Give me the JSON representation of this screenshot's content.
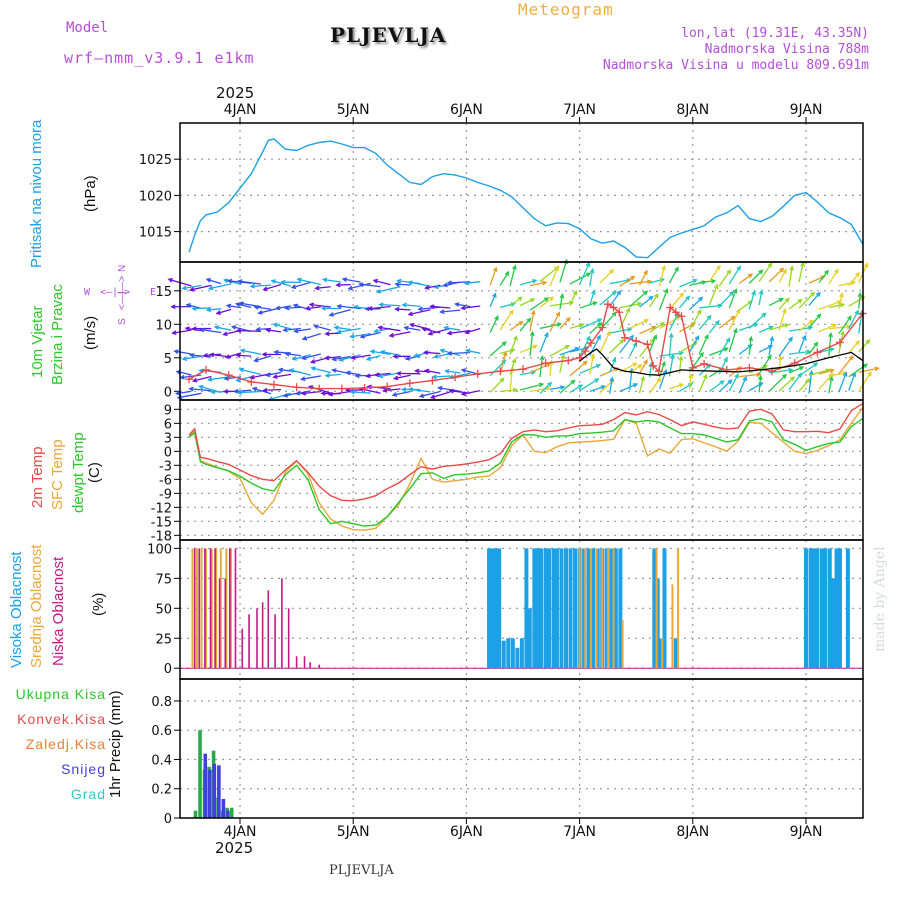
{
  "header": {
    "model_label": "Model",
    "model_name": "wrf—nmm_v3.9.1 e1km",
    "app_title": "Meteogram",
    "station": "PLJEVLJA",
    "coords": "lon,lat (19.31E, 43.35N)",
    "altitude": "Nadmorska Visina 788m",
    "model_altitude": "Nadmorska Visina u modelu 809.691m",
    "year_top": "2025",
    "year_bottom": "2025",
    "footer_station": "PLJEVLJA",
    "credit": "made by Angel"
  },
  "axis": {
    "days": [
      "4JAN",
      "5JAN",
      "6JAN",
      "7JAN",
      "8JAN",
      "9JAN"
    ]
  },
  "panels": {
    "pressure": {
      "label": "Pritisak na nivou mora",
      "unit": "(hPa)",
      "ticks": [
        "1025",
        "1020",
        "1015"
      ]
    },
    "wind": {
      "label1": "10m Vjetar",
      "label2": "Brzina i Pravac",
      "unit": "(m/s)",
      "ticks": [
        "15",
        "10",
        "5",
        "0"
      ],
      "compass_n": "N",
      "compass_s": "S",
      "compass_w": "W",
      "compass_e": "E",
      "compass_h": "<—|—>"
    },
    "temp": {
      "label1": "2m Temp",
      "label2": "SFC Temp",
      "label3": "dewpt Temp",
      "unit": "(C)",
      "ticks": [
        "9",
        "6",
        "3",
        "0",
        "-3",
        "-6",
        "-9",
        "-12",
        "-15",
        "-18"
      ]
    },
    "cloud": {
      "label1": "Visoka Oblacnost",
      "label2": "Srednja Oblacnost",
      "label3": "Niska Oblacnost",
      "unit": "(%)",
      "ticks": [
        "100",
        "75",
        "50",
        "25",
        "0"
      ]
    },
    "precip": {
      "unit": "1hr Precip (mm)",
      "ticks": [
        "0.8",
        "0.6",
        "0.4",
        "0.2",
        "0"
      ],
      "legend": [
        "Ukupna Kisa",
        "Konvek.Kisa",
        "Zaledj.Kisa",
        "Snijeg",
        "Grad"
      ]
    }
  },
  "colors": {
    "pressure": "#1ea0e6",
    "temp2m": "#e84a4a",
    "sfc": "#e8a83a",
    "dewpt": "#2ac82a",
    "cloud_high": "#1ea0e6",
    "cloud_mid": "#e8a83a",
    "cloud_low": "#c4178a",
    "precip_total": "#2aa84a",
    "precip_conv": "#e84a4a",
    "precip_frz": "#f08030",
    "precip_snow": "#4040e0",
    "precip_hail": "#30c8c8",
    "title_purple": "#b44fd8",
    "title_orange": "#f0b040"
  },
  "chart_data": [
    {
      "type": "line",
      "title": "Pritisak na nivou mora",
      "ylabel": "(hPa)",
      "x_day_range": [
        3.55,
        9.5
      ],
      "ylim": [
        1010.8,
        1030
      ],
      "x": [
        3.55,
        3.6,
        3.65,
        3.7,
        3.8,
        3.9,
        4.0,
        4.1,
        4.2,
        4.25,
        4.3,
        4.4,
        4.5,
        4.6,
        4.7,
        4.8,
        4.9,
        5.0,
        5.1,
        5.2,
        5.3,
        5.4,
        5.5,
        5.6,
        5.7,
        5.8,
        5.9,
        6.0,
        6.1,
        6.2,
        6.3,
        6.4,
        6.5,
        6.6,
        6.7,
        6.8,
        6.9,
        7.0,
        7.1,
        7.2,
        7.3,
        7.4,
        7.5,
        7.6,
        7.7,
        7.8,
        7.9,
        8.0,
        8.1,
        8.2,
        8.3,
        8.4,
        8.5,
        8.6,
        8.7,
        8.8,
        8.9,
        9.0,
        9.1,
        9.2,
        9.3,
        9.4,
        9.5
      ],
      "y": [
        1012.2,
        1014.5,
        1016.5,
        1017.3,
        1017.7,
        1019.0,
        1021.0,
        1023.0,
        1026.0,
        1027.6,
        1027.8,
        1026.4,
        1026.2,
        1026.9,
        1027.3,
        1027.5,
        1027.1,
        1026.6,
        1026.6,
        1025.8,
        1024.2,
        1023.0,
        1021.8,
        1021.5,
        1022.6,
        1023.0,
        1022.8,
        1022.4,
        1021.8,
        1021.3,
        1020.7,
        1019.8,
        1018.3,
        1016.8,
        1015.8,
        1016.2,
        1016.1,
        1015.4,
        1014.0,
        1013.4,
        1013.7,
        1012.8,
        1011.5,
        1011.4,
        1012.8,
        1014.2,
        1014.8,
        1015.3,
        1015.8,
        1017.0,
        1017.6,
        1018.6,
        1016.8,
        1016.4,
        1017.1,
        1018.5,
        1020.0,
        1020.4,
        1019.1,
        1017.6,
        1016.9,
        1016.0,
        1013.3
      ]
    },
    {
      "type": "line",
      "title": "10m Vjetar Brzina i Pravac",
      "ylabel": "(m/s)",
      "ylim": [
        -1.3,
        19.3
      ],
      "series": [
        {
          "x": [
            3.55,
            3.7,
            3.9,
            4.1,
            4.3,
            4.5,
            4.7,
            4.9,
            5.1,
            5.3,
            5.5,
            5.7,
            5.9,
            6.1,
            6.3,
            6.5,
            6.7,
            6.9,
            7.0,
            7.05,
            7.1,
            7.2,
            7.25,
            7.3,
            7.35,
            7.4,
            7.5,
            7.6,
            7.65,
            7.7,
            7.8,
            7.85,
            7.9,
            8.0,
            8.1,
            8.3,
            8.5,
            8.7,
            8.9,
            9.1,
            9.3,
            9.5
          ],
          "y": [
            1.8,
            3.2,
            2.4,
            1.4,
            1.0,
            0.6,
            0.4,
            0.4,
            0.5,
            0.7,
            1.2,
            1.6,
            2.1,
            2.6,
            3.0,
            3.3,
            4.2,
            4.6,
            5.0,
            6.0,
            7.2,
            9.5,
            13.0,
            12.5,
            11.8,
            8.0,
            7.5,
            7.0,
            3.8,
            3.0,
            12.5,
            11.8,
            11.2,
            3.5,
            4.1,
            3.2,
            3.5,
            3.0,
            4.2,
            5.8,
            7.3,
            11.6
          ]
        },
        {
          "x": [
            7.0,
            7.1,
            7.15,
            7.2,
            7.3,
            7.4,
            7.5,
            7.6,
            7.7,
            7.8,
            7.9,
            8.0,
            8.2,
            8.4,
            8.6,
            8.8,
            9.0,
            9.2,
            9.4,
            9.5
          ],
          "y": [
            4.5,
            5.8,
            6.3,
            5.5,
            3.5,
            3.0,
            2.8,
            2.5,
            2.4,
            2.8,
            3.2,
            3.1,
            3.0,
            2.9,
            3.2,
            3.6,
            4.1,
            5.0,
            5.8,
            4.6
          ]
        }
      ]
    },
    {
      "type": "line",
      "title": "2m Temp / SFC Temp / dewpt Temp",
      "ylabel": "(C)",
      "ylim": [
        -19,
        11
      ],
      "x": [
        3.55,
        3.6,
        3.65,
        3.7,
        3.8,
        3.9,
        4.0,
        4.1,
        4.2,
        4.3,
        4.4,
        4.5,
        4.6,
        4.7,
        4.8,
        4.9,
        5.0,
        5.1,
        5.2,
        5.3,
        5.4,
        5.5,
        5.6,
        5.7,
        5.8,
        5.9,
        6.0,
        6.1,
        6.2,
        6.3,
        6.4,
        6.5,
        6.6,
        6.7,
        6.8,
        6.9,
        7.0,
        7.1,
        7.2,
        7.3,
        7.4,
        7.5,
        7.6,
        7.7,
        7.8,
        7.9,
        8.0,
        8.1,
        8.2,
        8.3,
        8.4,
        8.5,
        8.6,
        8.7,
        8.8,
        8.9,
        9.0,
        9.1,
        9.2,
        9.3,
        9.4,
        9.5
      ],
      "series": [
        {
          "name": "2m Temp",
          "y": [
            3.5,
            4.8,
            -1.3,
            -1.5,
            -2.2,
            -2.8,
            -4.0,
            -5.2,
            -6.0,
            -6.3,
            -4.0,
            -2.0,
            -4.5,
            -7.5,
            -9.5,
            -10.5,
            -10.6,
            -10.2,
            -9.5,
            -8.0,
            -6.8,
            -5.0,
            -3.3,
            -3.8,
            -3.2,
            -3.0,
            -2.7,
            -2.3,
            -1.8,
            -0.5,
            2.8,
            4.2,
            4.6,
            4.2,
            4.4,
            5.0,
            5.5,
            5.6,
            5.8,
            6.8,
            8.3,
            7.8,
            8.5,
            7.9,
            6.8,
            5.5,
            6.3,
            5.8,
            5.2,
            4.8,
            5.0,
            8.6,
            9.0,
            8.0,
            4.6,
            4.2,
            4.2,
            4.3,
            4.0,
            4.8,
            8.7,
            10.2
          ]
        },
        {
          "name": "SFC Temp",
          "y": [
            3.2,
            4.3,
            -2.0,
            -2.5,
            -3.4,
            -4.3,
            -5.8,
            -11.0,
            -13.5,
            -10.5,
            -4.5,
            -2.0,
            -4.8,
            -11.0,
            -14.5,
            -16.0,
            -16.8,
            -16.9,
            -16.5,
            -14.0,
            -11.5,
            -7.0,
            -1.5,
            -6.0,
            -6.6,
            -6.3,
            -6.0,
            -5.5,
            -5.3,
            -3.5,
            1.2,
            3.5,
            0.0,
            -0.3,
            1.0,
            1.8,
            2.0,
            2.1,
            2.3,
            2.6,
            6.8,
            6.0,
            -1.0,
            0.5,
            -0.4,
            2.5,
            2.7,
            1.8,
            1.0,
            0.0,
            2.2,
            6.2,
            6.0,
            4.0,
            2.0,
            0.0,
            -0.5,
            0.2,
            1.2,
            2.5,
            6.0,
            9.3
          ]
        },
        {
          "name": "dewpt Temp",
          "y": [
            3.0,
            4.0,
            -2.2,
            -2.8,
            -3.5,
            -4.2,
            -5.3,
            -6.8,
            -8.0,
            -8.5,
            -5.0,
            -3.0,
            -6.0,
            -12.5,
            -15.5,
            -15.0,
            -15.5,
            -16.0,
            -15.8,
            -14.0,
            -11.0,
            -8.0,
            -4.8,
            -4.6,
            -5.8,
            -5.0,
            -4.9,
            -4.6,
            -4.2,
            -2.5,
            2.0,
            3.6,
            3.5,
            3.0,
            3.3,
            3.3,
            3.8,
            3.9,
            4.1,
            4.4,
            6.8,
            6.3,
            6.6,
            6.3,
            5.0,
            3.8,
            3.8,
            3.5,
            2.8,
            2.0,
            2.5,
            6.5,
            7.0,
            6.3,
            2.5,
            1.5,
            0.2,
            1.0,
            1.7,
            2.0,
            5.3,
            7.0
          ]
        }
      ]
    },
    {
      "type": "bar",
      "title": "Visoka / Srednja / Niska Oblacnost",
      "ylabel": "(%)",
      "ylim": [
        0,
        100
      ],
      "series": [
        {
          "name": "Visoka Oblacnost",
          "x": [
            6.2,
            6.23,
            6.26,
            6.29,
            6.33,
            6.37,
            6.41,
            6.45,
            6.49,
            6.53,
            6.56,
            6.6,
            6.63,
            6.66,
            6.7,
            6.73,
            6.77,
            6.8,
            6.84,
            6.88,
            6.92,
            6.96,
            7.0,
            7.04,
            7.08,
            7.12,
            7.16,
            7.2,
            7.24,
            7.28,
            7.32,
            7.36,
            7.66,
            7.69,
            7.72,
            7.75,
            7.85,
            9.0,
            9.04,
            9.07,
            9.1,
            9.14,
            9.17,
            9.21,
            9.24,
            9.27,
            9.3,
            9.37
          ],
          "y": [
            100,
            100,
            100,
            100,
            23,
            25,
            25,
            17,
            25,
            100,
            50,
            100,
            100,
            100,
            100,
            100,
            100,
            100,
            100,
            100,
            100,
            100,
            100,
            100,
            100,
            100,
            100,
            100,
            100,
            100,
            100,
            100,
            100,
            75,
            25,
            100,
            25,
            100,
            100,
            100,
            100,
            100,
            100,
            100,
            75,
            100,
            100,
            100
          ]
        },
        {
          "name": "Srednja Oblacnost",
          "x": [
            3.58,
            3.62,
            3.66,
            3.7,
            3.75,
            3.79,
            3.83,
            3.88,
            3.92,
            7.0,
            7.05,
            7.1,
            7.15,
            7.2,
            7.25,
            7.3,
            7.38,
            7.68,
            7.73,
            7.82,
            7.87
          ],
          "y": [
            100,
            100,
            100,
            100,
            100,
            100,
            100,
            100,
            100,
            100,
            100,
            100,
            100,
            100,
            100,
            100,
            40,
            100,
            25,
            70,
            100
          ]
        },
        {
          "name": "Niska Oblacnost",
          "x": [
            3.6,
            3.64,
            3.69,
            3.74,
            3.78,
            3.82,
            3.87,
            3.91,
            3.96,
            4.02,
            4.08,
            4.15,
            4.2,
            4.25,
            4.31,
            4.37,
            4.43,
            4.5,
            4.57,
            4.62,
            4.7
          ],
          "y": [
            100,
            100,
            100,
            100,
            100,
            75,
            75,
            100,
            100,
            33,
            45,
            50,
            55,
            65,
            45,
            75,
            50,
            10,
            10,
            5,
            3
          ]
        }
      ]
    },
    {
      "type": "bar",
      "title": "1hr Precip",
      "ylabel": "1hr Precip (mm)",
      "ylim": [
        0,
        0.95
      ],
      "series": [
        {
          "name": "Ukupna Kisa",
          "x": [
            3.62,
            3.66,
            3.7,
            3.74,
            3.78,
            3.82,
            3.86,
            3.9,
            3.94
          ],
          "y": [
            0.05,
            0.6,
            0.33,
            0.35,
            0.46,
            0.14,
            0.05,
            0.07,
            0.07
          ]
        },
        {
          "name": "Snijeg",
          "x": [
            3.68,
            3.72,
            3.76,
            3.8,
            3.84,
            3.88
          ],
          "y": [
            0.44,
            0.33,
            0.37,
            0.36,
            0.13,
            0.05
          ]
        }
      ]
    }
  ]
}
